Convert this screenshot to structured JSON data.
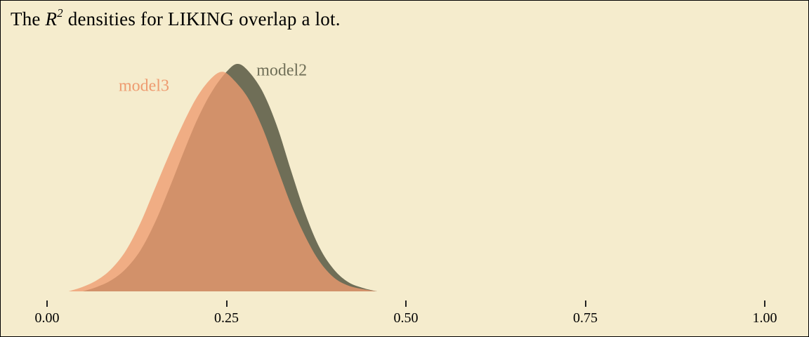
{
  "page": {
    "background": "#F5ECCD",
    "border_color": "#000000",
    "tick_color": "#222222",
    "text_color": "#000000"
  },
  "title": {
    "pre": "The ",
    "var": "R",
    "exp": "2",
    "post": " densities for LIKING overlap a lot."
  },
  "chart_data": {
    "type": "area",
    "kind": "overlapping density curves",
    "title": "The R^2 densities for LIKING overlap a lot.",
    "xlabel": "",
    "ylabel": "",
    "xlim": [
      -0.05,
      1.05
    ],
    "ylim": [
      0,
      1
    ],
    "y_units": "normalized density (peak = 1)",
    "grid": false,
    "legend": "inline labels next to curves",
    "x_ticks": {
      "values": [
        0,
        0.25,
        0.5,
        0.75,
        1.0
      ],
      "labels": [
        "0.00",
        "0.25",
        "0.50",
        "0.75",
        "1.00"
      ]
    },
    "series": [
      {
        "name": "model2",
        "color": "#6F6E57",
        "fill_opacity": 1.0,
        "label": {
          "text": "model2",
          "x": 0.327,
          "y": 0.97
        },
        "points": [
          [
            0.05,
            0
          ],
          [
            0.07,
            0.02
          ],
          [
            0.09,
            0.05
          ],
          [
            0.11,
            0.1
          ],
          [
            0.13,
            0.18
          ],
          [
            0.15,
            0.3
          ],
          [
            0.17,
            0.45
          ],
          [
            0.19,
            0.61
          ],
          [
            0.21,
            0.76
          ],
          [
            0.23,
            0.88
          ],
          [
            0.25,
            0.965
          ],
          [
            0.265,
            1.0
          ],
          [
            0.28,
            0.97
          ],
          [
            0.3,
            0.88
          ],
          [
            0.32,
            0.73
          ],
          [
            0.34,
            0.53
          ],
          [
            0.36,
            0.34
          ],
          [
            0.38,
            0.19
          ],
          [
            0.4,
            0.095
          ],
          [
            0.42,
            0.04
          ],
          [
            0.44,
            0.015
          ],
          [
            0.46,
            0
          ]
        ]
      },
      {
        "name": "model3",
        "color": "#EE9B70",
        "fill_opacity": 0.78,
        "label": {
          "text": "model3",
          "x": 0.135,
          "y": 0.9
        },
        "points": [
          [
            0.03,
            0
          ],
          [
            0.05,
            0.02
          ],
          [
            0.07,
            0.05
          ],
          [
            0.09,
            0.1
          ],
          [
            0.11,
            0.18
          ],
          [
            0.13,
            0.3
          ],
          [
            0.15,
            0.45
          ],
          [
            0.17,
            0.6
          ],
          [
            0.19,
            0.74
          ],
          [
            0.21,
            0.86
          ],
          [
            0.23,
            0.94
          ],
          [
            0.245,
            0.965
          ],
          [
            0.26,
            0.93
          ],
          [
            0.28,
            0.85
          ],
          [
            0.3,
            0.72
          ],
          [
            0.32,
            0.55
          ],
          [
            0.34,
            0.38
          ],
          [
            0.36,
            0.24
          ],
          [
            0.38,
            0.13
          ],
          [
            0.4,
            0.06
          ],
          [
            0.42,
            0.025
          ],
          [
            0.44,
            0.01
          ],
          [
            0.46,
            0
          ]
        ]
      }
    ]
  }
}
